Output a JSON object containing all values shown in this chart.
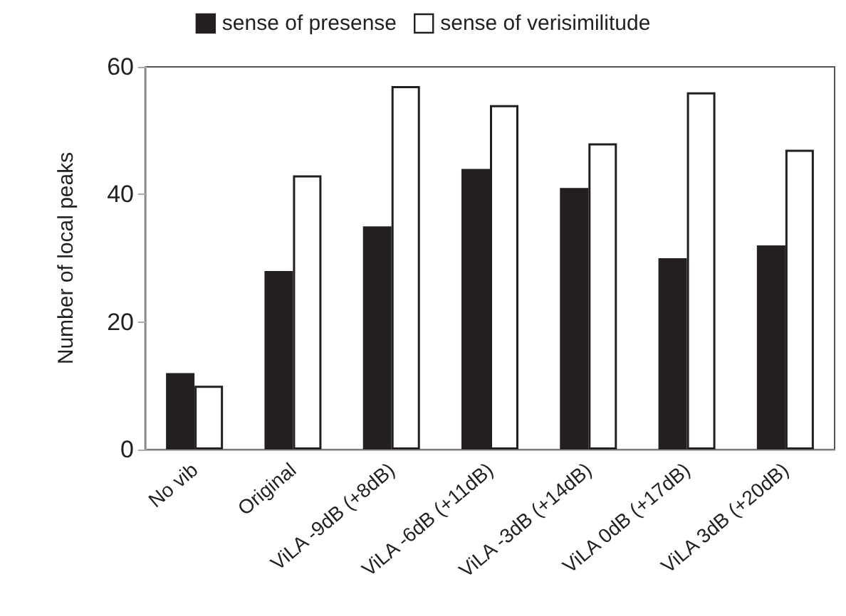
{
  "chart_data": {
    "type": "bar",
    "ylabel": "Number of local peaks",
    "categories": [
      "No vib",
      "Original",
      "ViLA -9dB (+8dB)",
      "ViLA -6dB (+11dB)",
      "ViLA -3dB (+14dB)",
      "ViLA 0dB (+17dB)",
      "ViLA 3dB (+20dB)"
    ],
    "series": [
      {
        "name": "sense of presense",
        "color": "#231f20",
        "values": [
          12,
          28,
          35,
          44,
          41,
          30,
          32
        ]
      },
      {
        "name": "sense of verisimilitude",
        "color": "#ffffff",
        "values": [
          10,
          43,
          57,
          54,
          48,
          56,
          47
        ]
      }
    ],
    "ylim": [
      0,
      60
    ],
    "yticks": [
      0,
      20,
      40,
      60
    ],
    "grid": false,
    "legend": "top"
  }
}
